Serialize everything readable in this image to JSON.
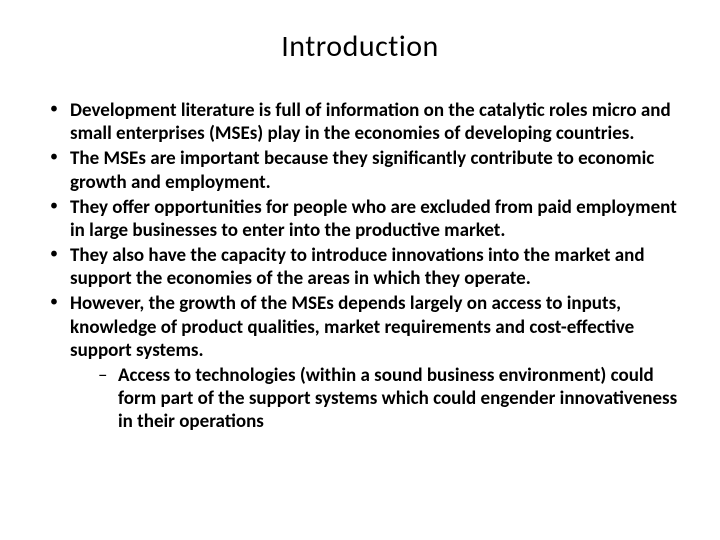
{
  "slide": {
    "title": "Introduction",
    "bullets": [
      {
        "text": "Development literature is  full of information on the catalytic roles micro and small enterprises (MSEs) play in the economies of developing countries."
      },
      {
        "text": "The MSEs are important because they significantly contribute to economic growth and employment."
      },
      {
        "text": "They offer opportunities for people who are excluded from paid employment in large businesses to enter into the productive market."
      },
      {
        "text": "They also have the capacity to introduce innovations into the market and support the economies of the areas in which they operate."
      },
      {
        "text": "However, the growth of the MSEs depends largely on access to inputs, knowledge of product qualities, market requirements and cost-effective support systems.",
        "sub": [
          {
            "text": "Access to technologies (within a sound business environment) could form part of the support systems which could engender innovativeness in their operations"
          }
        ]
      }
    ],
    "colors": {
      "background": "#ffffff",
      "text": "#000000"
    },
    "typography": {
      "title_fontsize_pt": 30,
      "title_weight": 400,
      "body_fontsize_pt": 19,
      "body_weight": 700,
      "font_family": "Calibri"
    }
  }
}
